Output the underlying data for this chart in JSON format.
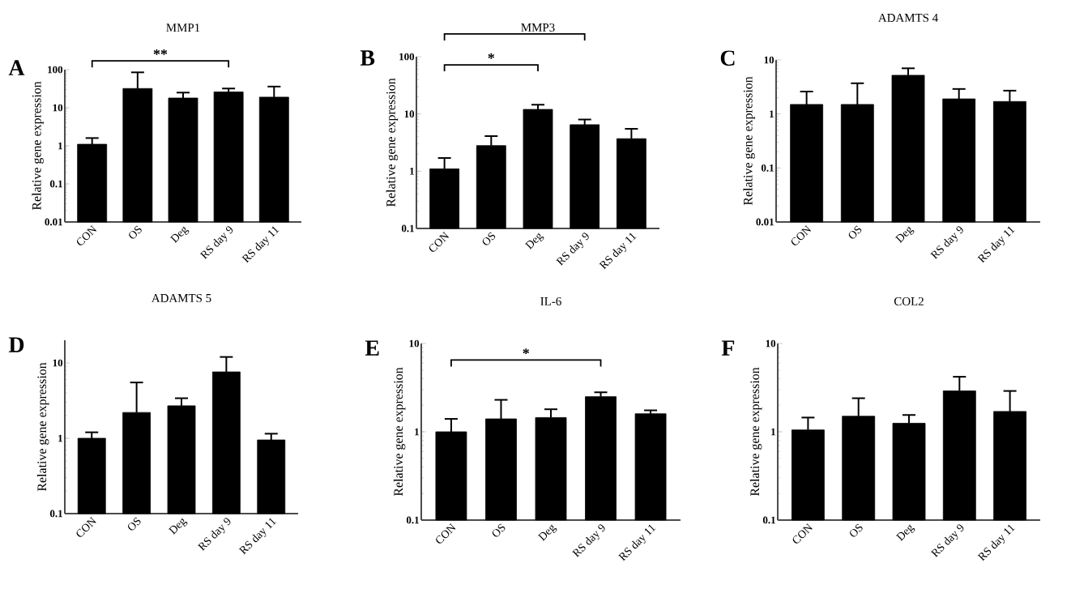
{
  "chart_data": [
    {
      "type": "bar",
      "title": "MMP1",
      "ylabel": "Relative gene expression",
      "categories": [
        "CON",
        "OS",
        "Deg",
        "RS day 9",
        "RS day 11"
      ],
      "values": [
        1.1,
        32,
        18,
        26,
        19
      ],
      "errors": [
        [
          1.1,
          1.6
        ],
        [
          32,
          85
        ],
        [
          18,
          25
        ],
        [
          26,
          32
        ],
        [
          19,
          36
        ]
      ],
      "color": "#000000",
      "log": true,
      "ylim": [
        0.01,
        100
      ],
      "yticks": [
        0.01,
        0.1,
        1,
        10,
        100
      ],
      "annotations": [
        "A",
        "**"
      ]
    },
    {
      "type": "bar",
      "title": "MMP3",
      "ylabel": "Relative gene expression",
      "categories": [
        "CON",
        "OS",
        "Deg",
        "RS day 9",
        "RS day 11"
      ],
      "values": [
        1.1,
        2.8,
        12,
        6.5,
        3.7
      ],
      "errors": [
        [
          1.1,
          1.7
        ],
        [
          2.8,
          4.1
        ],
        [
          12,
          14.5
        ],
        [
          6.5,
          8
        ],
        [
          3.7,
          5.5
        ]
      ],
      "color": "#000000",
      "log": true,
      "ylim": [
        0.1,
        100
      ],
      "yticks": [
        0.1,
        1,
        10,
        100
      ],
      "annotations": [
        "B",
        "*"
      ]
    },
    {
      "type": "bar",
      "title": "ADAMTS 4",
      "ylabel": "Relative gene expression",
      "categories": [
        "CON",
        "OS",
        "Deg",
        "RS day 9",
        "RS day 11"
      ],
      "values": [
        1.5,
        1.5,
        5.2,
        1.9,
        1.7
      ],
      "errors": [
        [
          1.5,
          2.6
        ],
        [
          1.5,
          3.7
        ],
        [
          5.2,
          7
        ],
        [
          1.9,
          2.9
        ],
        [
          1.7,
          2.7
        ]
      ],
      "color": "#000000",
      "log": true,
      "ylim": [
        0.01,
        10
      ],
      "yticks": [
        0.01,
        0.1,
        1,
        10
      ],
      "annotations": [
        "C"
      ]
    },
    {
      "type": "bar",
      "title": "ADAMTS 5",
      "ylabel": "Relative gene expression",
      "categories": [
        "CON",
        "OS",
        "Deg",
        "RS day 9",
        "RS day 11"
      ],
      "values": [
        1.0,
        2.2,
        2.7,
        7.6,
        0.95
      ],
      "errors": [
        [
          1.0,
          1.2
        ],
        [
          2.2,
          5.5
        ],
        [
          2.7,
          3.4
        ],
        [
          7.6,
          12
        ],
        [
          0.95,
          1.15
        ]
      ],
      "color": "#000000",
      "log": true,
      "ylim": [
        0.1,
        20
      ],
      "yticks": [
        0.1,
        1,
        10
      ],
      "annotations": [
        "D"
      ]
    },
    {
      "type": "bar",
      "title": "IL-6",
      "ylabel": "Relative gene expression",
      "categories": [
        "CON",
        "OS",
        "Deg",
        "RS day 9",
        "RS day 11"
      ],
      "values": [
        1.0,
        1.4,
        1.45,
        2.5,
        1.6
      ],
      "errors": [
        [
          1.0,
          1.4
        ],
        [
          1.4,
          2.3
        ],
        [
          1.45,
          1.8
        ],
        [
          2.5,
          2.8
        ],
        [
          1.6,
          1.75
        ]
      ],
      "color": "#000000",
      "log": true,
      "ylim": [
        0.1,
        10
      ],
      "yticks": [
        0.1,
        1,
        10
      ],
      "annotations": [
        "E",
        "*"
      ]
    },
    {
      "type": "bar",
      "title": "COL2",
      "ylabel": "Relative gene expression",
      "categories": [
        "CON",
        "OS",
        "Deg",
        "RS day 9",
        "RS day 11"
      ],
      "values": [
        1.05,
        1.5,
        1.25,
        2.9,
        1.7
      ],
      "errors": [
        [
          1.05,
          1.45
        ],
        [
          1.5,
          2.4
        ],
        [
          1.25,
          1.55
        ],
        [
          2.9,
          4.2
        ],
        [
          1.7,
          2.9
        ]
      ],
      "color": "#000000",
      "log": true,
      "ylim": [
        0.1,
        10
      ],
      "yticks": [
        0.1,
        1,
        10
      ],
      "annotations": [
        "F"
      ]
    }
  ]
}
